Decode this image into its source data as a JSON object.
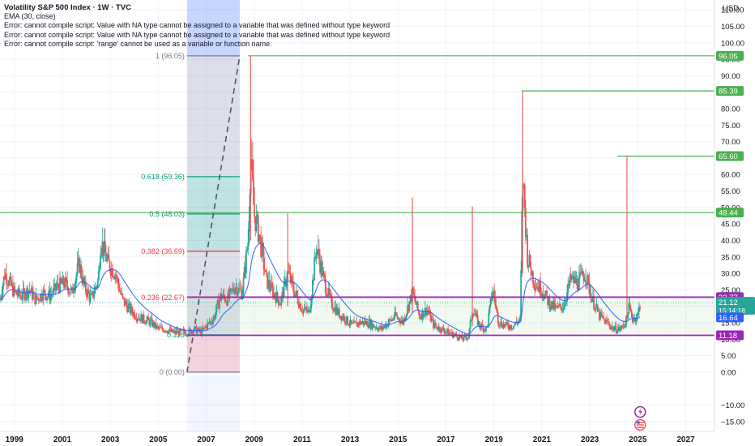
{
  "header": {
    "title": "Volatility S&P 500 Index · 1W · TVC",
    "indicator": "EMA (30, close)",
    "errors": [
      "Error: cannot compile script: Value with NA type cannot be assigned to a variable that was defined without type keyword",
      "Error: cannot compile script: Value with NA type cannot be assigned to a variable that was defined without type keyword",
      "Error: cannot compile script: 'range' cannot be used as a variable or function name."
    ]
  },
  "currency": "USD",
  "colors": {
    "up": "#26a69a",
    "down": "#ef5350",
    "ema": "#2962ff",
    "green_line": "#4caf50",
    "purple_line": "#9c27b0",
    "fib_618": "#089981",
    "fib_382": "#f23645",
    "fib_1": "#787b86"
  },
  "chart_data": {
    "type": "line",
    "title": "Volatility S&P 500 Index",
    "xlabel": "",
    "ylabel": "",
    "xlim": [
      1998.4,
      2028.2
    ],
    "ylim": [
      -18,
      113
    ],
    "x_ticks": [
      "1999",
      "2001",
      "2003",
      "2005",
      "2007",
      "2009",
      "2011",
      "2013",
      "2015",
      "2017",
      "2019",
      "2021",
      "2023",
      "2025",
      "2027"
    ],
    "x_tick_values": [
      1999,
      2001,
      2003,
      2005,
      2007,
      2009,
      2011,
      2013,
      2015,
      2017,
      2019,
      2021,
      2023,
      2025,
      2027
    ],
    "y_ticks": [
      -15,
      -10,
      0,
      5,
      10,
      15,
      20,
      25,
      30,
      35,
      40,
      45,
      50,
      55,
      60,
      65,
      70,
      75,
      80,
      85,
      90,
      95,
      100,
      105,
      110
    ],
    "y_tick_labels": [
      "−15.00",
      "−10.00",
      "0.00",
      "5.00",
      "10.00",
      "15.00",
      "20.00",
      "25.00",
      "30.00",
      "35.00",
      "40.00",
      "45.00",
      "50.00",
      "55.00",
      "60.00",
      "65.00",
      "70.00",
      "75.00",
      "80.00",
      "85.00",
      "90.00",
      "95.00",
      "100.00",
      "105.00",
      "110.00"
    ],
    "series": [
      {
        "name": "Volatility S&P 500 Index",
        "x": [
          1998.4,
          1998.6,
          1998.8,
          1999.0,
          1999.3,
          1999.6,
          1999.9,
          2000.2,
          2000.5,
          2000.8,
          2001.1,
          2001.4,
          2001.7,
          2001.9,
          2002.2,
          2002.5,
          2002.6,
          2002.9,
          2003.2,
          2003.5,
          2003.8,
          2004.1,
          2004.4,
          2004.7,
          2005.0,
          2005.3,
          2005.6,
          2005.9,
          2006.2,
          2006.5,
          2006.8,
          2007.0,
          2007.3,
          2007.6,
          2007.9,
          2008.2,
          2008.5,
          2008.75,
          2008.85,
          2009.0,
          2009.2,
          2009.5,
          2009.8,
          2010.1,
          2010.4,
          2010.7,
          2011.0,
          2011.3,
          2011.6,
          2011.9,
          2012.2,
          2012.5,
          2012.8,
          2013.1,
          2013.4,
          2013.7,
          2014.0,
          2014.3,
          2014.6,
          2014.9,
          2015.2,
          2015.6,
          2015.9,
          2016.2,
          2016.5,
          2016.8,
          2017.1,
          2017.4,
          2017.7,
          2017.95,
          2018.1,
          2018.4,
          2018.7,
          2018.95,
          2019.2,
          2019.5,
          2019.8,
          2020.1,
          2020.2,
          2020.4,
          2020.7,
          2021.0,
          2021.3,
          2021.6,
          2021.9,
          2022.2,
          2022.5,
          2022.8,
          2023.1,
          2023.4,
          2023.7,
          2024.0,
          2024.3,
          2024.55,
          2024.6,
          2024.8,
          2025.0,
          2025.1
        ],
        "values": [
          22,
          30,
          27,
          24,
          23,
          25,
          22,
          24,
          23,
          26,
          27,
          24,
          33,
          26,
          22,
          28,
          40,
          33,
          30,
          22,
          19,
          17,
          16,
          15,
          13,
          13,
          12,
          12,
          12,
          13,
          12,
          14,
          16,
          23,
          22,
          26,
          24,
          40,
          66,
          48,
          42,
          28,
          24,
          21,
          30,
          24,
          19,
          18,
          38,
          28,
          21,
          18,
          16,
          14,
          15,
          15,
          14,
          13,
          15,
          17,
          15,
          24,
          17,
          19,
          14,
          13,
          12,
          11,
          10,
          11,
          19,
          14,
          13,
          25,
          15,
          14,
          14,
          16,
          60,
          35,
          27,
          25,
          21,
          19,
          20,
          28,
          27,
          30,
          22,
          17,
          15,
          13,
          13,
          16,
          20,
          16,
          17,
          21
        ]
      }
    ],
    "ema_name": "EMA (30, close)",
    "current": {
      "price_label": "21.12",
      "countdown": "15:14:18",
      "ema_label": "16.64"
    },
    "horizontal_levels": [
      {
        "value": 96.05,
        "label": "96.05",
        "x_start": 2008.75,
        "color": "green"
      },
      {
        "value": 85.39,
        "label": "85.39",
        "x_start": 2020.15,
        "color": "green"
      },
      {
        "value": 65.6,
        "label": "65.60",
        "x_start": 2024.15,
        "color": "green"
      },
      {
        "value": 48.44,
        "label": "48.44",
        "x_start": 1998.4,
        "color": "green"
      },
      {
        "value": 22.77,
        "label": "22.77",
        "x_start": 2006.2,
        "color": "purple"
      },
      {
        "value": 11.18,
        "label": "11.18",
        "x_start": 2006.2,
        "color": "purple"
      }
    ],
    "fibonacci": {
      "x_start": 2006.2,
      "x_end": 2008.4,
      "levels": [
        {
          "ratio": 1,
          "value": 96.05,
          "label": "1 (96.05)"
        },
        {
          "ratio": 0.618,
          "value": 59.36,
          "label": "0.618 (59.36)"
        },
        {
          "ratio": 0.5,
          "value": 48.03,
          "label": "0.5 (48.03)"
        },
        {
          "ratio": 0.382,
          "value": 36.69,
          "label": "0.382 (36.69)"
        },
        {
          "ratio": 0.236,
          "value": 22.67,
          "label": "0.236 (22.67)"
        },
        {
          "ratio": 0.118,
          "value": 11.33,
          "label": "0.118"
        },
        {
          "ratio": 0,
          "value": 0.0,
          "label": "0 (0.00)"
        }
      ]
    },
    "date_range_highlight": {
      "x_start": 2006.2,
      "x_end": 2008.4
    },
    "grid": true,
    "legend_position": "top-left"
  }
}
